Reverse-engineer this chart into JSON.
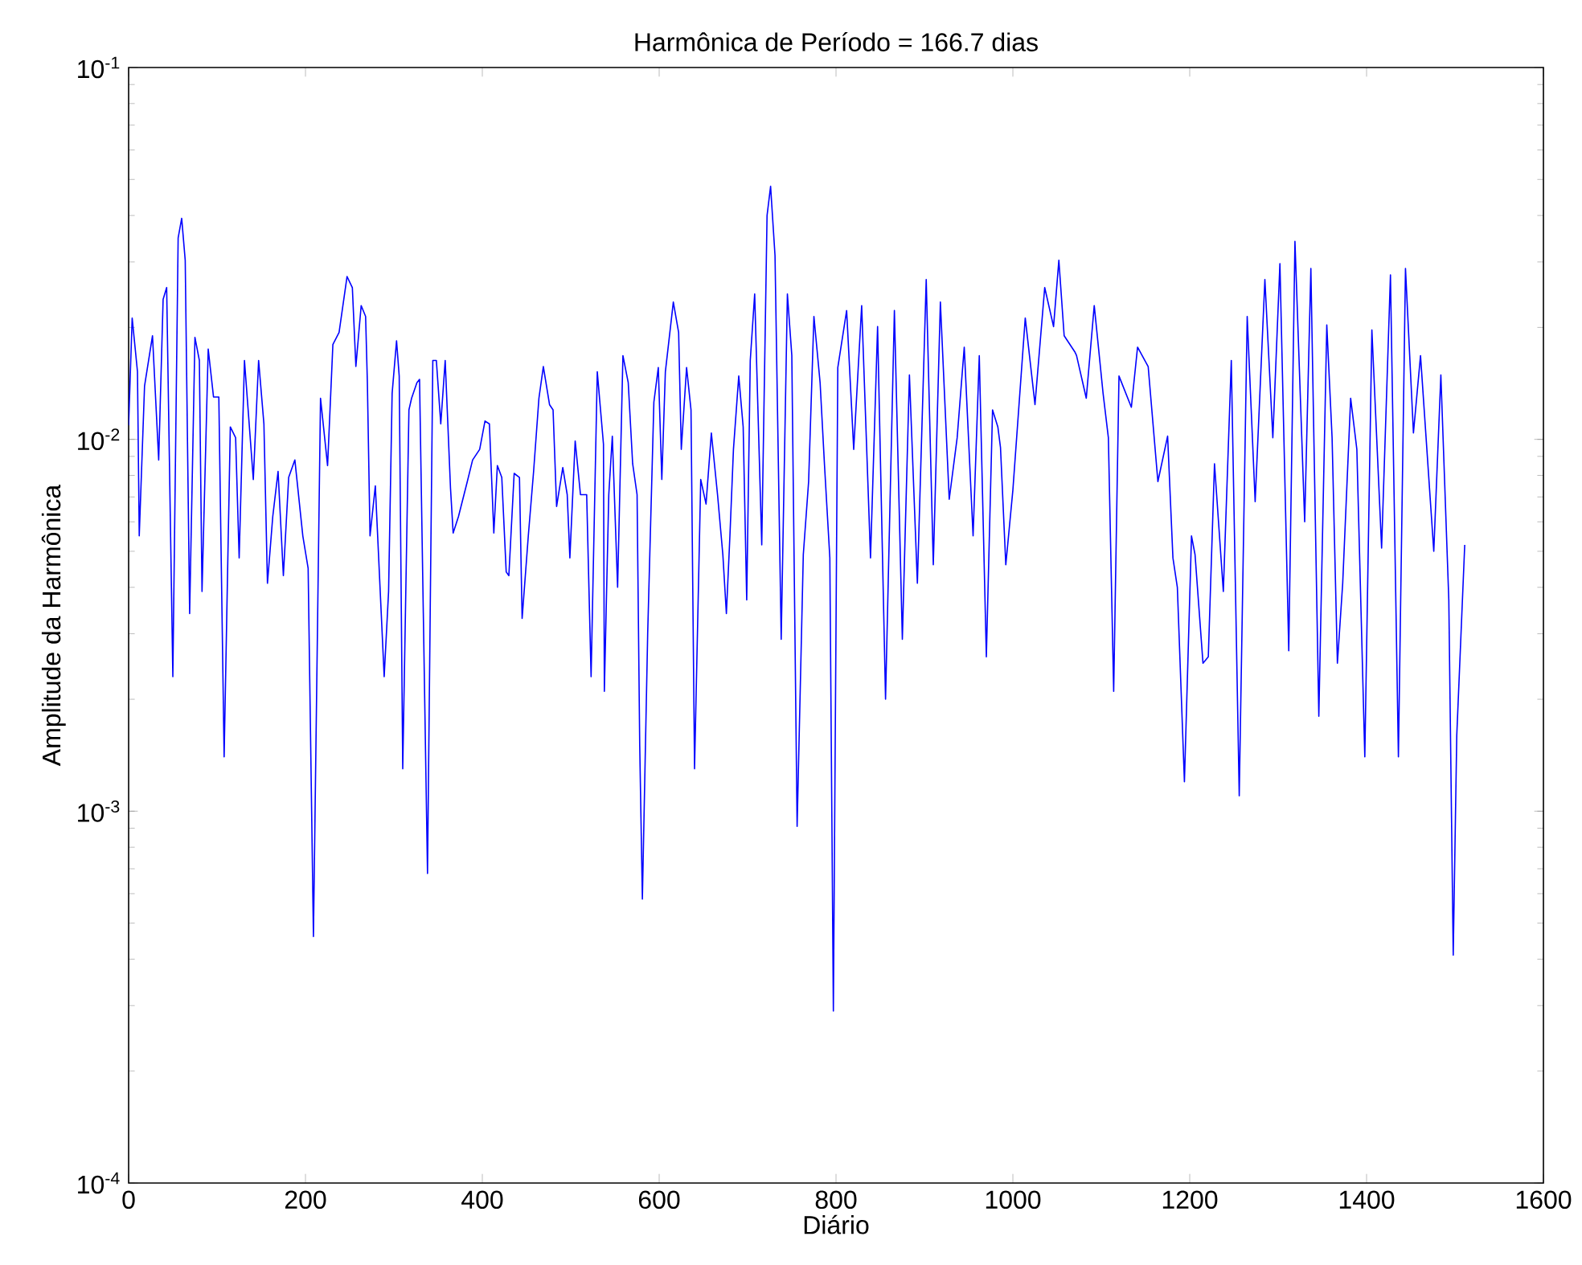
{
  "chart_data": {
    "type": "line",
    "title": "Harmônica de Período = 166.7 dias",
    "xlabel": "Diário",
    "ylabel": "Amplitude da Harmônica",
    "log": "y",
    "grid": false,
    "marker": "none",
    "line_style": "solid",
    "xlim": [
      0,
      1600
    ],
    "xticks": [
      0,
      200,
      400,
      600,
      800,
      1000,
      1200,
      1400,
      1600
    ],
    "ylim": [
      0.0001,
      0.1
    ],
    "yticks": [
      {
        "value": 0.0001,
        "label": "10$^{-4}$"
      },
      {
        "value": 0.001,
        "label": "10$^{-3}$"
      },
      {
        "value": 0.01,
        "label": "10$^{-2}$"
      },
      {
        "value": 0.1,
        "label": "10$^{-1}$"
      }
    ],
    "series": [
      {
        "color": "#0000ff",
        "x": [
          0,
          4,
          10,
          12,
          18,
          27,
          34,
          39,
          43,
          50,
          56,
          60,
          64,
          69,
          75,
          80,
          83,
          90,
          96,
          102,
          108,
          115,
          121,
          125,
          131,
          141,
          147,
          153,
          157,
          163,
          169,
          175,
          181,
          188,
          197,
          203,
          209,
          217,
          225,
          231,
          238,
          247,
          253,
          257,
          263,
          268,
          270,
          273,
          279,
          289,
          294,
          298,
          303,
          306,
          310,
          317,
          320,
          326,
          329,
          338,
          344,
          348,
          353,
          358,
          364,
          367,
          373,
          383,
          389,
          397,
          403,
          408,
          413,
          417,
          422,
          427,
          430,
          436,
          442,
          445,
          452,
          458,
          464,
          469,
          476,
          480,
          484,
          491,
          496,
          499,
          505,
          511,
          518,
          523,
          530,
          537,
          538,
          543,
          547,
          553,
          559,
          565,
          570,
          575,
          578,
          581,
          587,
          594,
          599,
          603,
          607,
          616,
          622,
          625,
          631,
          636,
          640,
          647,
          653,
          659,
          666,
          672,
          676,
          680,
          684,
          690,
          695,
          699,
          703,
          708,
          716,
          722,
          726,
          731,
          738,
          745,
          750,
          756,
          763,
          769,
          775,
          782,
          787,
          793,
          797,
          802,
          812,
          820,
          829,
          839,
          847,
          856,
          866,
          875,
          883,
          892,
          902,
          910,
          918,
          928,
          937,
          945,
          955,
          962,
          970,
          977,
          983,
          986,
          992,
          1000,
          1014,
          1025,
          1036,
          1046,
          1052,
          1058,
          1070,
          1072,
          1083,
          1092,
          1102,
          1108,
          1114,
          1120,
          1134,
          1141,
          1153,
          1164,
          1175,
          1181,
          1186,
          1194,
          1202,
          1206,
          1215,
          1221,
          1228,
          1238,
          1247,
          1256,
          1265,
          1274,
          1285,
          1294,
          1302,
          1312,
          1319,
          1330,
          1337,
          1346,
          1355,
          1361,
          1367,
          1373,
          1382,
          1389,
          1398,
          1406,
          1417,
          1427,
          1436,
          1444,
          1453,
          1461,
          1476,
          1484,
          1493,
          1498,
          1502,
          1511
        ],
        "values": [
          0.0109,
          0.0212,
          0.0152,
          0.0055,
          0.0139,
          0.019,
          0.0088,
          0.0238,
          0.0256,
          0.0023,
          0.0348,
          0.0393,
          0.0303,
          0.0034,
          0.0188,
          0.0163,
          0.0039,
          0.0175,
          0.013,
          0.013,
          0.0014,
          0.0108,
          0.0101,
          0.0048,
          0.0163,
          0.0078,
          0.0163,
          0.011,
          0.0041,
          0.0062,
          0.0082,
          0.0043,
          0.0079,
          0.0088,
          0.0055,
          0.0045,
          0.00046,
          0.0129,
          0.0085,
          0.018,
          0.0194,
          0.0274,
          0.0256,
          0.0157,
          0.0229,
          0.0214,
          0.0142,
          0.0055,
          0.0075,
          0.0023,
          0.0039,
          0.0133,
          0.0184,
          0.0148,
          0.0013,
          0.012,
          0.0129,
          0.0142,
          0.0145,
          0.00068,
          0.0163,
          0.0163,
          0.011,
          0.0163,
          0.0074,
          0.0056,
          0.0062,
          0.0077,
          0.0088,
          0.0094,
          0.0112,
          0.011,
          0.0056,
          0.0085,
          0.0079,
          0.0044,
          0.0043,
          0.0081,
          0.0079,
          0.0033,
          0.0055,
          0.0082,
          0.0129,
          0.0157,
          0.0124,
          0.012,
          0.0066,
          0.0084,
          0.0071,
          0.0048,
          0.0099,
          0.0071,
          0.0071,
          0.0023,
          0.0152,
          0.0097,
          0.0021,
          0.0071,
          0.0102,
          0.004,
          0.0168,
          0.0142,
          0.0086,
          0.0071,
          0.0015,
          0.00058,
          0.003,
          0.0126,
          0.0156,
          0.0078,
          0.0152,
          0.0234,
          0.0194,
          0.0094,
          0.0156,
          0.012,
          0.0013,
          0.0078,
          0.0067,
          0.0104,
          0.0071,
          0.0049,
          0.0034,
          0.0055,
          0.0094,
          0.0148,
          0.0108,
          0.0037,
          0.0163,
          0.0246,
          0.0052,
          0.04,
          0.0479,
          0.0312,
          0.0029,
          0.0246,
          0.0168,
          0.00091,
          0.0049,
          0.0077,
          0.0214,
          0.0142,
          0.0085,
          0.0048,
          0.00029,
          0.0156,
          0.0222,
          0.0094,
          0.0229,
          0.0048,
          0.0201,
          0.002,
          0.0222,
          0.0029,
          0.0149,
          0.0041,
          0.0269,
          0.0046,
          0.0234,
          0.0069,
          0.0101,
          0.0177,
          0.0055,
          0.0168,
          0.0026,
          0.012,
          0.0108,
          0.0095,
          0.0046,
          0.0073,
          0.0212,
          0.0124,
          0.0256,
          0.0201,
          0.0303,
          0.019,
          0.0172,
          0.0168,
          0.0129,
          0.0229,
          0.0133,
          0.0101,
          0.0021,
          0.0148,
          0.0122,
          0.0177,
          0.0157,
          0.0077,
          0.0102,
          0.0048,
          0.004,
          0.0012,
          0.0055,
          0.0049,
          0.0025,
          0.0026,
          0.0086,
          0.0039,
          0.0163,
          0.0011,
          0.0214,
          0.0068,
          0.0269,
          0.0101,
          0.0297,
          0.0027,
          0.0341,
          0.006,
          0.0288,
          0.0018,
          0.0203,
          0.0101,
          0.0025,
          0.0041,
          0.0129,
          0.0094,
          0.0014,
          0.0197,
          0.0051,
          0.0277,
          0.0014,
          0.0288,
          0.0104,
          0.0168,
          0.005,
          0.0149,
          0.0037,
          0.00041,
          0.0016,
          0.0052
        ]
      }
    ]
  }
}
